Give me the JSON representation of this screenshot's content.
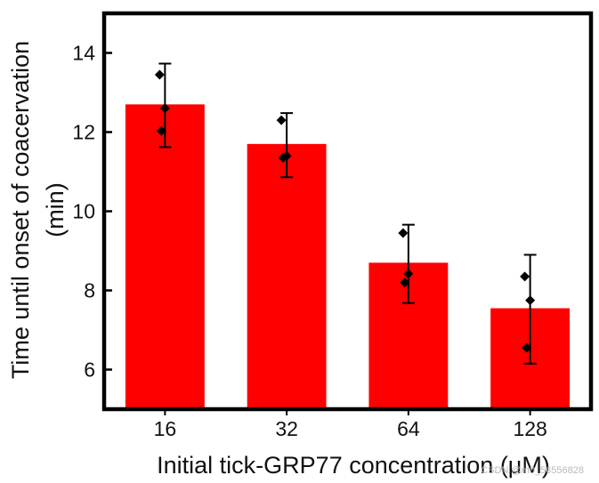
{
  "chart_data": {
    "type": "bar",
    "title": "",
    "xlabel": "Initial tick-GRP77 concentration (μM)",
    "ylabel_line1": "Time until onset of coacervation",
    "ylabel_line2": "(min)",
    "categories": [
      "16",
      "32",
      "64",
      "128"
    ],
    "values": [
      12.7,
      11.7,
      8.7,
      7.55
    ],
    "error_low": [
      11.62,
      10.86,
      7.68,
      6.15
    ],
    "error_high": [
      13.73,
      12.48,
      9.66,
      8.9
    ],
    "points": [
      [
        13.45,
        12.6,
        12.03
      ],
      [
        12.3,
        11.4,
        11.35
      ],
      [
        9.45,
        8.42,
        8.2
      ],
      [
        8.35,
        7.75,
        6.55
      ]
    ],
    "yticks": [
      6,
      8,
      10,
      12,
      14
    ],
    "ylim": [
      5,
      15
    ],
    "bar_color": "#ff0000",
    "marker_color": "#000000",
    "grid": false,
    "legend": "none"
  },
  "watermark": "CSDN @m0_56556828"
}
